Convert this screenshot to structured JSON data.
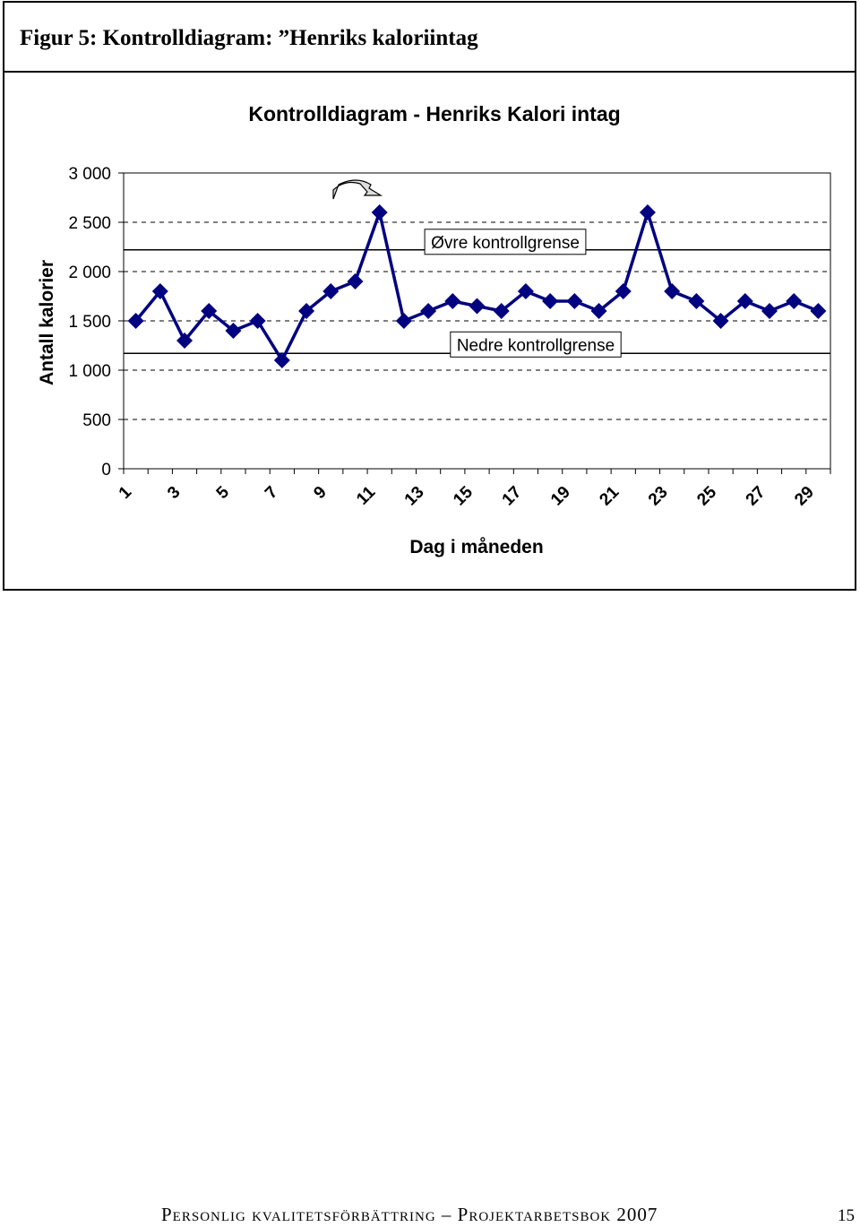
{
  "caption": "Figur 5: Kontrolldiagram: ”Henriks kaloriintag",
  "chart_data": {
    "type": "line",
    "title": "Kontrolldiagram - Henriks Kalori intag",
    "y_label": "Antall kalorier",
    "x_label": "Dag i måneden",
    "categories": [
      1,
      null,
      3,
      null,
      5,
      null,
      7,
      null,
      9,
      null,
      11,
      null,
      13,
      null,
      15,
      null,
      17,
      null,
      19,
      null,
      21,
      null,
      23,
      null,
      25,
      null,
      27,
      null,
      29
    ],
    "series": [
      {
        "color": "#000080",
        "values": [
          1500,
          1800,
          1300,
          1600,
          1400,
          1500,
          1100,
          1600,
          1800,
          1900,
          2600,
          1500,
          1600,
          1700,
          1650,
          1600,
          1800,
          1700,
          1700,
          1600,
          1800,
          2600,
          1800,
          1700,
          1500,
          1700,
          1600,
          1700,
          1600
        ]
      }
    ],
    "reference_lines": [
      {
        "label": "Øvre kontrollgrense",
        "value": 2220
      },
      {
        "label": "Nedre kontrollgrense",
        "value": 1170
      }
    ],
    "ylim": [
      0,
      3000
    ],
    "yticks": [
      0,
      500,
      {
        "value": 1000,
        "label": "1 000"
      },
      {
        "value": 1500,
        "label": "1 500"
      },
      {
        "value": 2000,
        "label": "2 000"
      },
      {
        "value": 2500,
        "label": "2 500"
      },
      {
        "value": 3000,
        "label": "3 000"
      }
    ],
    "grid": true
  },
  "footer": {
    "text": "Personlig kvalitetsförbättring – Projektarbetsbok 2007",
    "page": "15"
  }
}
